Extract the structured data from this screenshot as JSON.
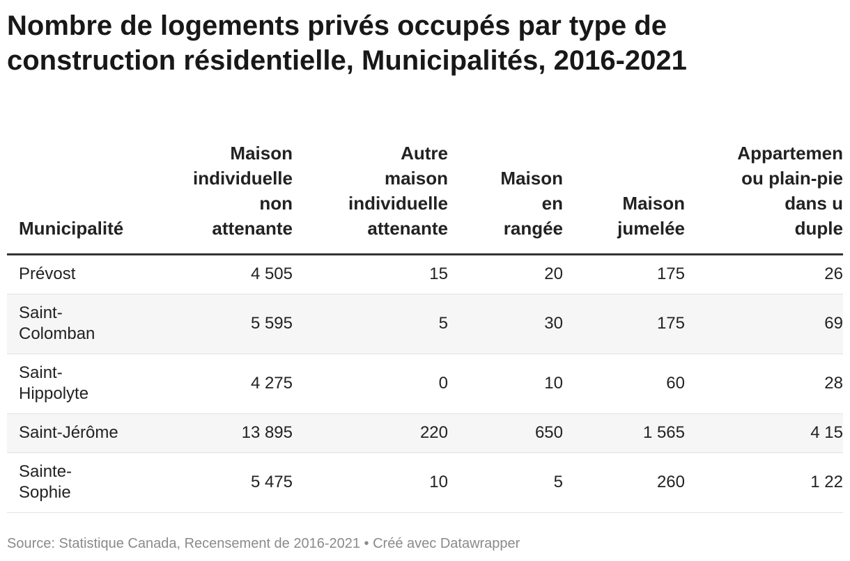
{
  "title": [
    "Nombre de logements privés occupés par type de",
    "construction résidentielle, Municipalités, 2016-2021"
  ],
  "table": {
    "headers": [
      [
        "Municipalité"
      ],
      [
        "Maison",
        "individuelle",
        "non",
        "attenante"
      ],
      [
        "Autre",
        "maison",
        "individuelle",
        "attenante"
      ],
      [
        "Maison",
        "en",
        "rangée"
      ],
      [
        "Maison",
        "jumelée"
      ],
      [
        "Appartemen",
        "ou plain-pie",
        "dans u",
        "duple"
      ]
    ],
    "rows": [
      [
        [
          "Prévost"
        ],
        "4 505",
        "15",
        "20",
        "175",
        "26"
      ],
      [
        [
          "Saint-",
          "Colomban"
        ],
        "5 595",
        "5",
        "30",
        "175",
        "69"
      ],
      [
        [
          "Saint-",
          "Hippolyte"
        ],
        "4 275",
        "0",
        "10",
        "60",
        "28"
      ],
      [
        [
          "Saint-Jérôme"
        ],
        "13 895",
        "220",
        "650",
        "1 565",
        "4 15"
      ],
      [
        [
          "Sainte-",
          "Sophie"
        ],
        "5 475",
        "10",
        "5",
        "260",
        "1 22"
      ]
    ]
  },
  "footer": "Source: Statistique Canada, Recensement de 2016-2021 • Créé avec Datawrapper"
}
